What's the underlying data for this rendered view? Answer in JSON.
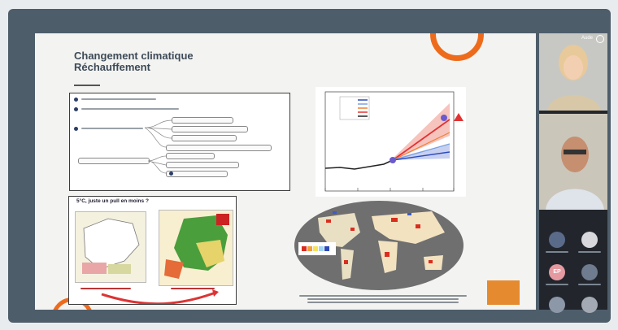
{
  "slide": {
    "title_line1": "Changement climatique",
    "title_line2": "Réchauffement",
    "map_panel_title": "5°C, juste un pull en moins ?"
  },
  "participants": [
    {
      "name": "Aude",
      "icon": "mic-muted-icon"
    },
    {
      "name": ""
    },
    {
      "name": ""
    }
  ],
  "thumbnails": [
    {
      "initials": ""
    },
    {
      "initials": ""
    },
    {
      "initials": "EP"
    },
    {
      "initials": ""
    },
    {
      "initials": ""
    },
    {
      "initials": ""
    }
  ],
  "colors": {
    "frame": "#4e5d6a",
    "accent_orange": "#ee6b1c",
    "slide_bg": "#f3f3f1",
    "sidebar_bg": "#22262c"
  }
}
